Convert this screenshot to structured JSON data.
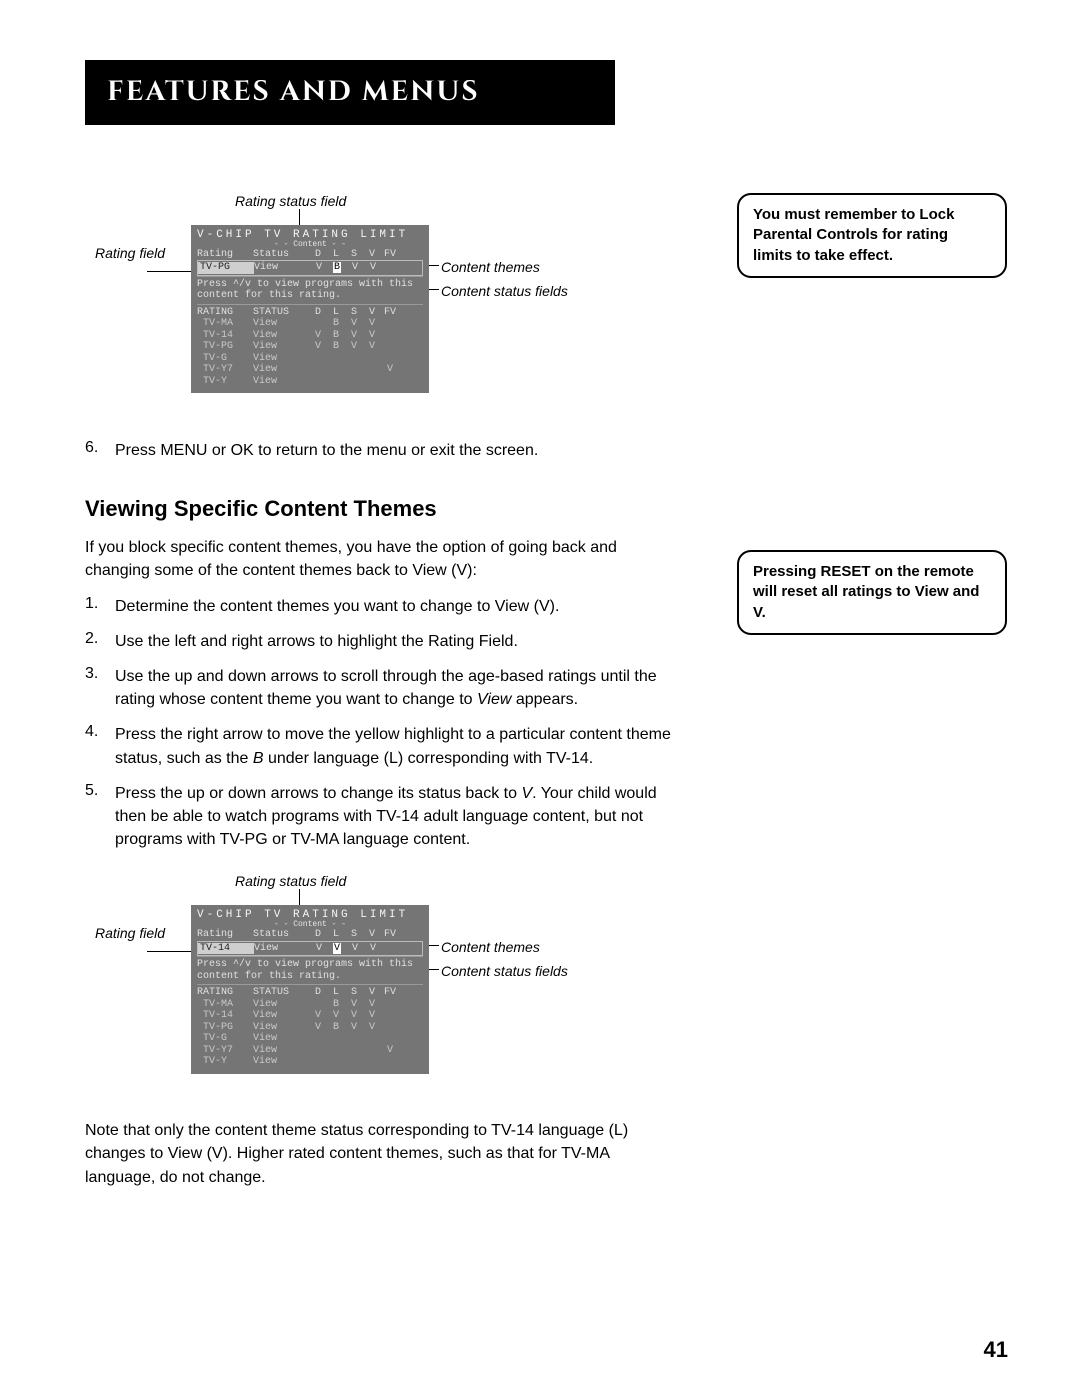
{
  "header": {
    "title": "Features and Menus"
  },
  "callouts": {
    "rating_status_field": "Rating status field",
    "rating_field": "Rating field",
    "content_themes": "Content themes",
    "content_status_fields": "Content status fields"
  },
  "osd1": {
    "title": "V-CHIP TV RATING LIMIT",
    "content_label": "- - Content - -",
    "columns": {
      "rating": "Rating",
      "status": "Status",
      "d": "D",
      "l": "L",
      "s": "S",
      "v": "V",
      "fv": "FV"
    },
    "selected": {
      "rating": "TV-PG",
      "status": "View",
      "cells": [
        "V",
        "B",
        "V",
        "V",
        ""
      ]
    },
    "highlight_col": 1,
    "msg": "Press ^/v to view programs with this content for this rating.",
    "header2": {
      "rating": "RATING",
      "status": "STATUS",
      "d": "D",
      "l": "L",
      "s": "S",
      "v": "V",
      "fv": "FV"
    },
    "rows": [
      {
        "rating": "TV-MA",
        "status": "View",
        "cells": [
          "",
          "B",
          "V",
          "V",
          ""
        ]
      },
      {
        "rating": "TV-14",
        "status": "View",
        "cells": [
          "V",
          "B",
          "V",
          "V",
          ""
        ]
      },
      {
        "rating": "TV-PG",
        "status": "View",
        "cells": [
          "V",
          "B",
          "V",
          "V",
          ""
        ]
      },
      {
        "rating": "TV-G",
        "status": "View",
        "cells": [
          "",
          "",
          "",
          "",
          ""
        ]
      },
      {
        "rating": "TV-Y7",
        "status": "View",
        "cells": [
          "",
          "",
          "",
          "",
          "V"
        ]
      },
      {
        "rating": "TV-Y",
        "status": "View",
        "cells": [
          "",
          "",
          "",
          "",
          ""
        ]
      }
    ]
  },
  "step6": {
    "num": "6.",
    "text": "Press MENU or OK to return to the menu or exit the screen."
  },
  "note1": {
    "l1": "You must remember to Lock Parental Controls for rating limits to take effect."
  },
  "subhead": "Viewing Specific Content Themes",
  "intro": "If you block specific content themes, you have the option of going back and changing some of the content themes back to View (V):",
  "steps": [
    {
      "num": "1.",
      "text": "Determine the content themes you want to change to View (V)."
    },
    {
      "num": "2.",
      "text": "Use the left and right arrows to highlight the Rating Field."
    },
    {
      "num": "3.",
      "text": "Use the up and down arrows to scroll through the age-based ratings until the rating whose content theme you want to change to ",
      "italic": "View",
      "tail": " appears."
    },
    {
      "num": "4.",
      "text": "Press the right arrow to move the yellow highlight to a particular content theme status, such as the ",
      "italic": "B",
      "tail": " under language (L) corresponding with TV-14."
    },
    {
      "num": "5.",
      "text": "Press the up or down arrows to change its status back to ",
      "italic": "V",
      "tail": ".  Your child would then be able to watch programs with TV-14 adult language content, but not programs with  TV-PG or TV-MA language content."
    }
  ],
  "note2": {
    "l1": "Pressing RESET on the remote will reset all ratings to View and V."
  },
  "osd2": {
    "title": "V-CHIP TV RATING LIMIT",
    "content_label": "- - Content - -",
    "columns": {
      "rating": "Rating",
      "status": "Status",
      "d": "D",
      "l": "L",
      "s": "S",
      "v": "V",
      "fv": "FV"
    },
    "selected": {
      "rating": "TV-14",
      "status": "View",
      "cells": [
        "V",
        "V",
        "V",
        "V",
        ""
      ]
    },
    "highlight_col": 1,
    "msg": "Press ^/v to view programs with this content for this rating.",
    "header2": {
      "rating": "RATING",
      "status": "STATUS",
      "d": "D",
      "l": "L",
      "s": "S",
      "v": "V",
      "fv": "FV"
    },
    "rows": [
      {
        "rating": "TV-MA",
        "status": "View",
        "cells": [
          "",
          "B",
          "V",
          "V",
          ""
        ]
      },
      {
        "rating": "TV-14",
        "status": "View",
        "cells": [
          "V",
          "V",
          "V",
          "V",
          ""
        ]
      },
      {
        "rating": "TV-PG",
        "status": "View",
        "cells": [
          "V",
          "B",
          "V",
          "V",
          ""
        ]
      },
      {
        "rating": "TV-G",
        "status": "View",
        "cells": [
          "",
          "",
          "",
          "",
          ""
        ]
      },
      {
        "rating": "TV-Y7",
        "status": "View",
        "cells": [
          "",
          "",
          "",
          "",
          "V"
        ]
      },
      {
        "rating": "TV-Y",
        "status": "View",
        "cells": [
          "",
          "",
          "",
          "",
          ""
        ]
      }
    ]
  },
  "closing": "Note that only the content theme status corresponding to TV-14 language (L) changes to View (V). Higher rated content themes, such as that for TV-MA language, do not change.",
  "page_number": "41"
}
